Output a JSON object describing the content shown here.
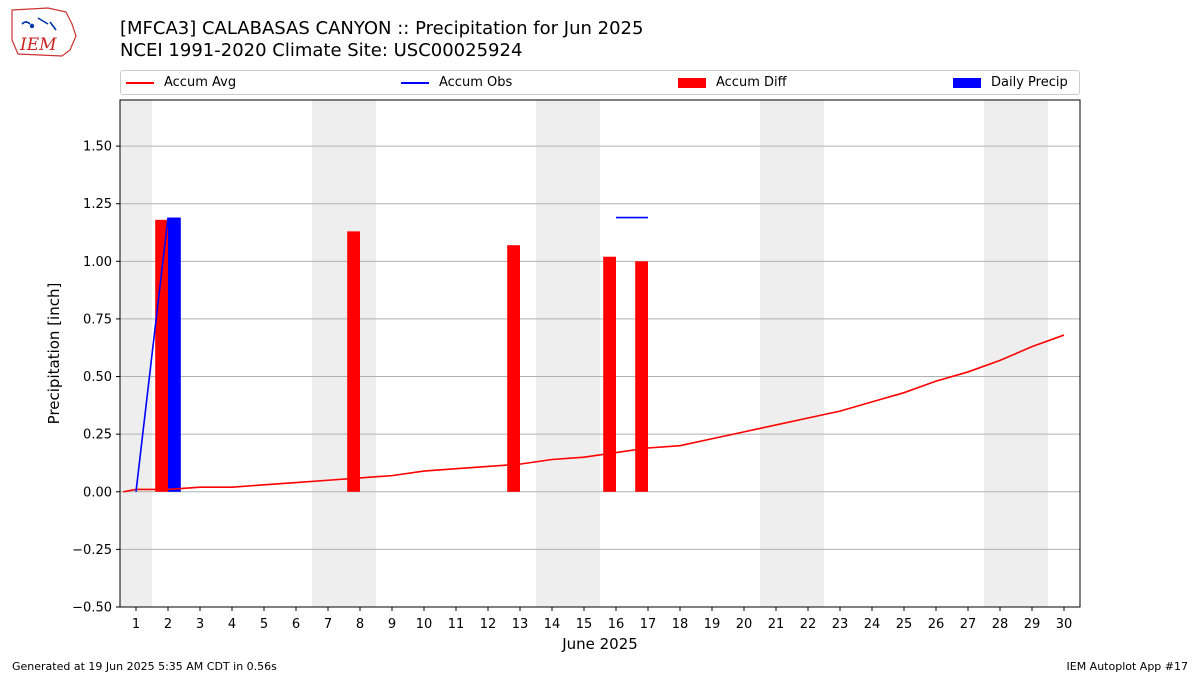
{
  "page": {
    "title_line1": "[MFCA3] CALABASAS CANYON :: Precipitation for Jun 2025",
    "title_line2": "NCEI 1991-2020 Climate Site: USC00025924",
    "logo_text": "IEM",
    "footer_left": "Generated at 19 Jun 2025 5:35 AM CDT in 0.56s",
    "footer_right": "IEM Autoplot App #17"
  },
  "colors": {
    "avg": "#ff0000",
    "obs": "#0000ff",
    "diff": "#ff0000",
    "daily": "#0000ff",
    "weekend_band": "#eeeeee",
    "grid": "#b0b0b0"
  },
  "legend": [
    {
      "label": "Accum Avg",
      "kind": "line",
      "color": "#ff0000"
    },
    {
      "label": "Accum Obs",
      "kind": "line",
      "color": "#0000ff"
    },
    {
      "label": "Accum Diff",
      "kind": "box",
      "color": "#ff0000"
    },
    {
      "label": "Daily Precip",
      "kind": "box",
      "color": "#0000ff"
    }
  ],
  "chart_data": {
    "type": "bar",
    "title": "[MFCA3] CALABASAS CANYON :: Precipitation for Jun 2025",
    "xlabel": "June 2025",
    "ylabel": "Precipitation [inch]",
    "xlim": [
      0.5,
      30.5
    ],
    "ylim": [
      -0.5,
      1.7
    ],
    "grid": true,
    "legend_position": "top",
    "x_ticks": [
      1,
      2,
      3,
      4,
      5,
      6,
      7,
      8,
      9,
      10,
      11,
      12,
      13,
      14,
      15,
      16,
      17,
      18,
      19,
      20,
      21,
      22,
      23,
      24,
      25,
      26,
      27,
      28,
      29,
      30
    ],
    "x_tick_labels": [
      "1",
      "2",
      "3",
      "4",
      "5",
      "6",
      "7",
      "8",
      "9",
      "10",
      "11",
      "12",
      "13",
      "14",
      "15",
      "16",
      "17",
      "18",
      "19",
      "20",
      "21",
      "22",
      "23",
      "24",
      "25",
      "26",
      "27",
      "28",
      "29",
      "30"
    ],
    "y_ticks": [
      -0.5,
      -0.25,
      0,
      0.25,
      0.5,
      0.75,
      1.0,
      1.25,
      1.5
    ],
    "y_tick_labels": [
      "−0.50",
      "−0.25",
      "0.00",
      "0.25",
      "0.50",
      "0.75",
      "1.00",
      "1.25",
      "1.50"
    ],
    "weekend_bands": [
      [
        0.5,
        1.5
      ],
      [
        6.5,
        8.5
      ],
      [
        13.5,
        15.5
      ],
      [
        20.5,
        22.5
      ],
      [
        27.5,
        29.5
      ]
    ],
    "series": [
      {
        "name": "Accum Avg",
        "kind": "line",
        "x": [
          0.6,
          1,
          2,
          3,
          4,
          5,
          6,
          7,
          8,
          9,
          10,
          11,
          12,
          13,
          14,
          15,
          16,
          17,
          18,
          19,
          20,
          21,
          22,
          23,
          24,
          25,
          26,
          27,
          28,
          29,
          30
        ],
        "values": [
          0.0,
          0.01,
          0.01,
          0.02,
          0.02,
          0.03,
          0.04,
          0.05,
          0.06,
          0.07,
          0.09,
          0.1,
          0.11,
          0.12,
          0.14,
          0.15,
          0.17,
          0.19,
          0.2,
          0.23,
          0.26,
          0.29,
          0.32,
          0.35,
          0.39,
          0.43,
          0.48,
          0.52,
          0.57,
          0.63,
          0.68
        ]
      },
      {
        "name": "Accum Obs",
        "kind": "line",
        "segments": [
          {
            "x": [
              1,
              2
            ],
            "values": [
              0.0,
              1.19
            ]
          },
          {
            "x": [
              16,
              17
            ],
            "values": [
              1.19,
              1.19
            ]
          }
        ]
      },
      {
        "name": "Accum Diff",
        "kind": "bar",
        "x": [
          2,
          8,
          13,
          16,
          17
        ],
        "values": [
          1.18,
          1.13,
          1.07,
          1.02,
          1.0
        ]
      },
      {
        "name": "Daily Precip",
        "kind": "bar",
        "x": [
          2
        ],
        "values": [
          1.19
        ]
      }
    ]
  }
}
